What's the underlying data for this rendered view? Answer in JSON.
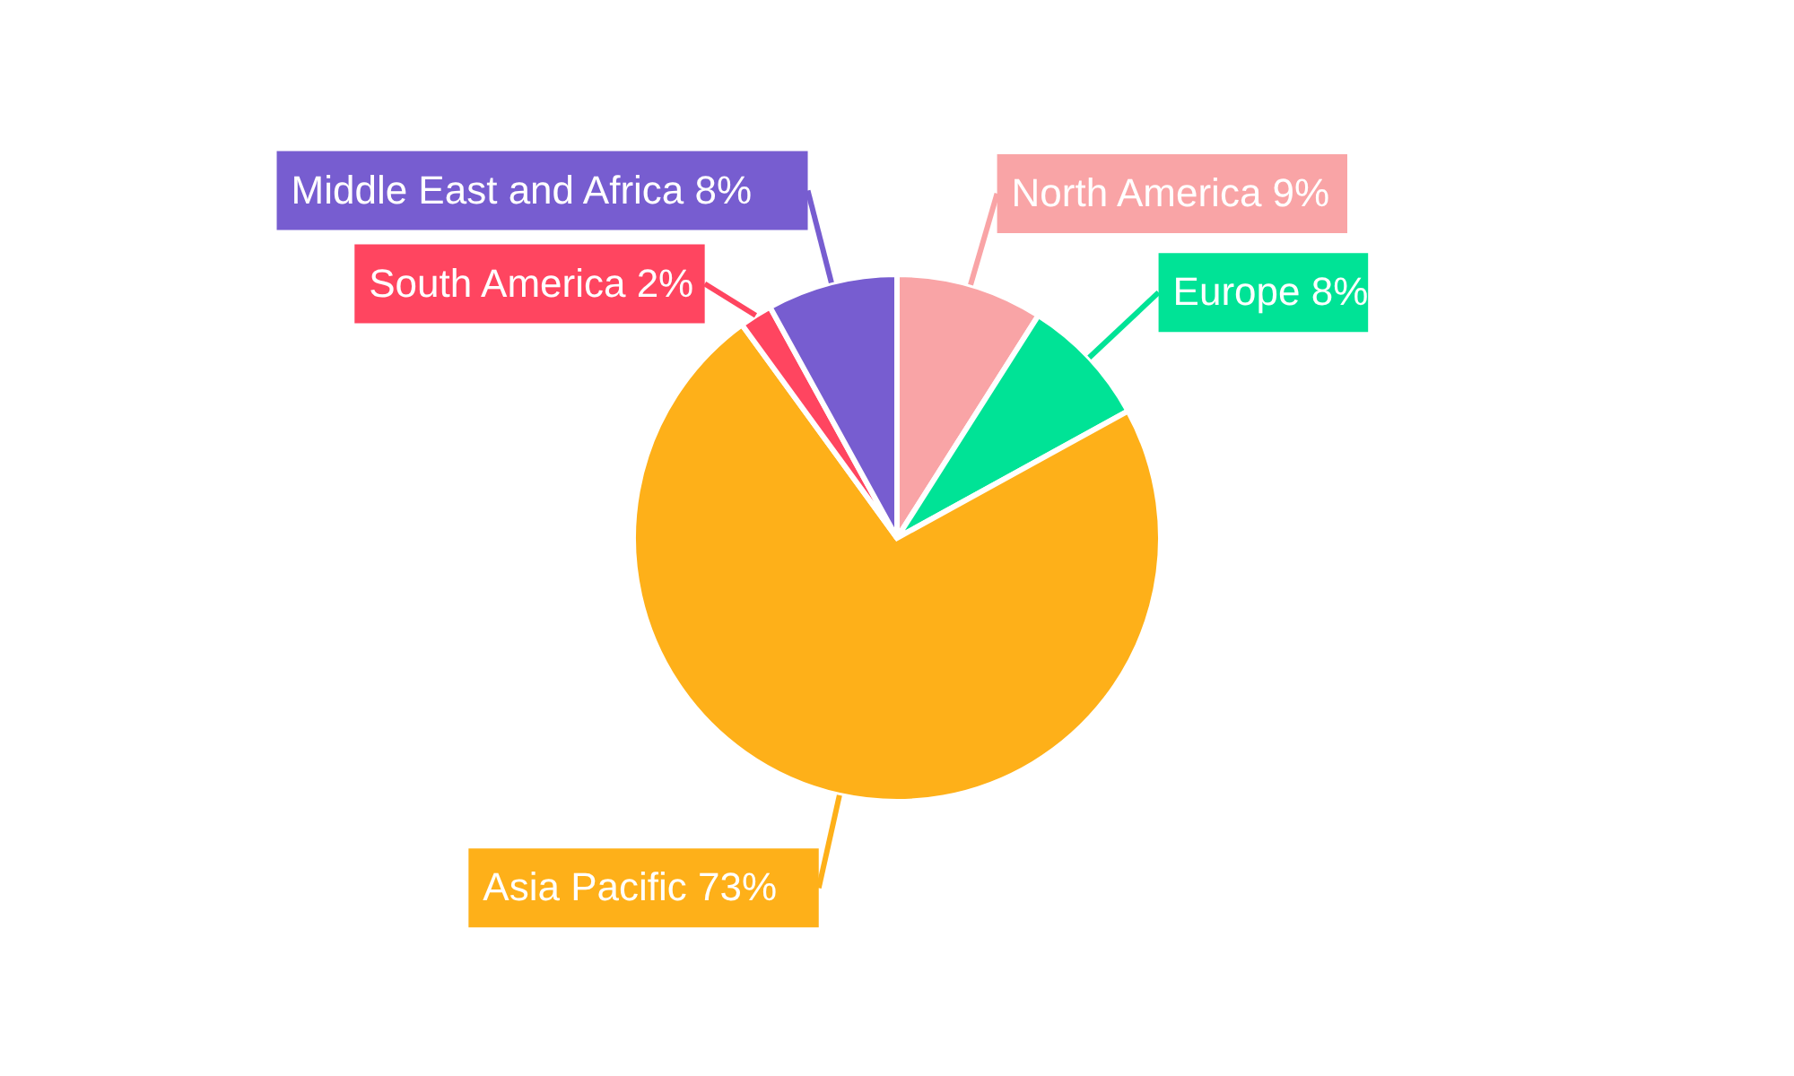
{
  "chart_data": {
    "type": "pie",
    "categories": [
      "North America",
      "Europe",
      "Asia Pacific",
      "South America",
      "Middle East and Africa"
    ],
    "values": [
      9,
      8,
      73,
      2,
      8
    ],
    "value_labels": [
      "9%",
      "8%",
      "73%",
      "2%",
      "8%"
    ],
    "colors": [
      "#f9a4a6",
      "#00e396",
      "#feb019",
      "#ff4560",
      "#775dd0"
    ]
  }
}
